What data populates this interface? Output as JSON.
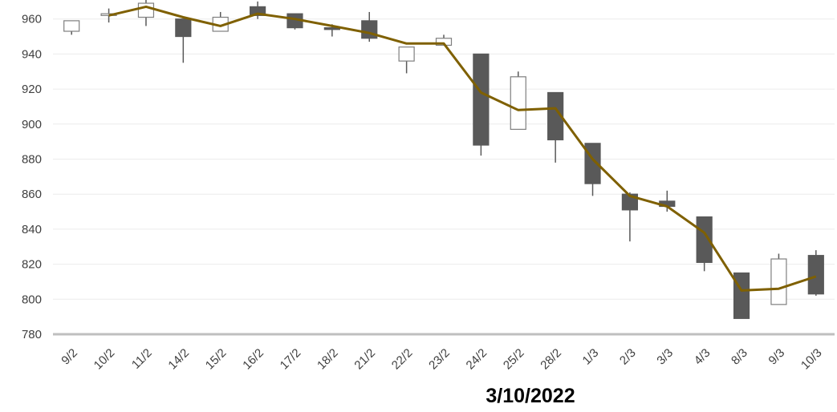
{
  "chart_data": {
    "type": "candlestick",
    "title": "3/10/2022",
    "xlabel": "",
    "ylabel": "",
    "ylim": [
      780,
      970
    ],
    "yticks": [
      780,
      800,
      820,
      840,
      860,
      880,
      900,
      920,
      940,
      960
    ],
    "grid": true,
    "categories": [
      "9/2",
      "10/2",
      "11/2",
      "14/2",
      "15/2",
      "16/2",
      "17/2",
      "18/2",
      "21/2",
      "22/2",
      "23/2",
      "24/2",
      "25/2",
      "28/2",
      "1/3",
      "2/3",
      "3/3",
      "4/3",
      "8/3",
      "9/3",
      "10/3"
    ],
    "candles": [
      {
        "open": 953,
        "high": 959,
        "low": 951,
        "close": 959
      },
      {
        "open": 962,
        "high": 966,
        "low": 958,
        "close": 963
      },
      {
        "open": 961,
        "high": 971,
        "low": 956,
        "close": 969
      },
      {
        "open": 960,
        "high": 960,
        "low": 935,
        "close": 950
      },
      {
        "open": 953,
        "high": 964,
        "low": 953,
        "close": 961
      },
      {
        "open": 967,
        "high": 970,
        "low": 960,
        "close": 962
      },
      {
        "open": 963,
        "high": 963,
        "low": 954,
        "close": 955
      },
      {
        "open": 955,
        "high": 957,
        "low": 950,
        "close": 954
      },
      {
        "open": 959,
        "high": 964,
        "low": 947,
        "close": 949
      },
      {
        "open": 936,
        "high": 944,
        "low": 929,
        "close": 944
      },
      {
        "open": 945,
        "high": 951,
        "low": 945,
        "close": 949
      },
      {
        "open": 940,
        "high": 940,
        "low": 882,
        "close": 888
      },
      {
        "open": 897,
        "high": 930,
        "low": 897,
        "close": 927
      },
      {
        "open": 918,
        "high": 918,
        "low": 878,
        "close": 891
      },
      {
        "open": 889,
        "high": 889,
        "low": 859,
        "close": 866
      },
      {
        "open": 860,
        "high": 861,
        "low": 833,
        "close": 851
      },
      {
        "open": 856,
        "high": 862,
        "low": 850,
        "close": 853
      },
      {
        "open": 847,
        "high": 847,
        "low": 816,
        "close": 821
      },
      {
        "open": 815,
        "high": 815,
        "low": 789,
        "close": 789
      },
      {
        "open": 797,
        "high": 826,
        "low": 797,
        "close": 823
      },
      {
        "open": 825,
        "high": 828,
        "low": 802,
        "close": 803
      }
    ],
    "series": [
      {
        "type": "line",
        "color": "#7f6000",
        "values": [
          null,
          962,
          967,
          961,
          956,
          963,
          960,
          956,
          952,
          946,
          946,
          918,
          908,
          909,
          880,
          859,
          853,
          838,
          805,
          806,
          813
        ]
      }
    ],
    "colors": {
      "bearish": "#595959",
      "bullish_fill": "#ffffff",
      "bullish_stroke": "#7f7f7f",
      "wick": "#595959",
      "grid": "#ececec",
      "axis": "#bfbfbf"
    }
  }
}
